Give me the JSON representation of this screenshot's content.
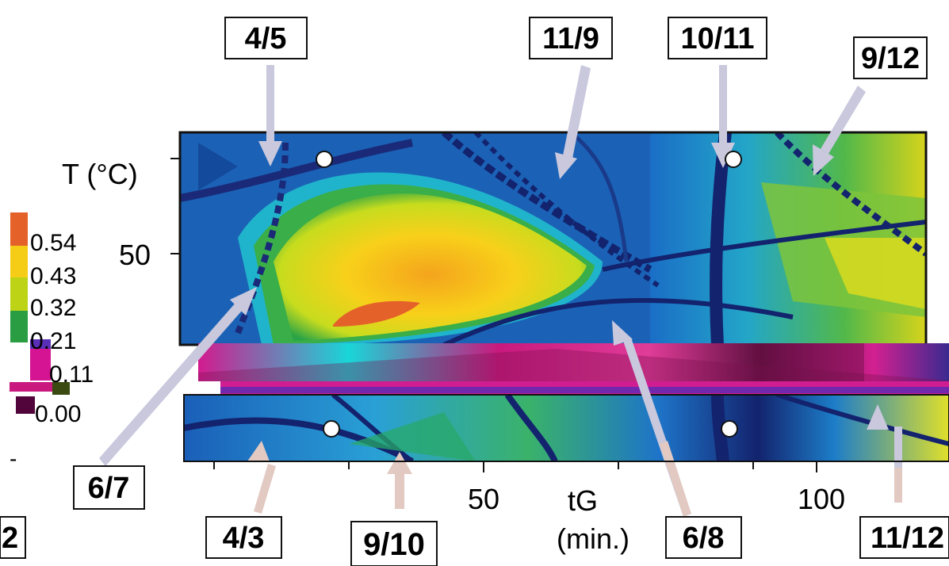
{
  "chart_data": {
    "type": "heatmap",
    "title": "",
    "xlabel": "tG",
    "xunit": "(min.)",
    "ylabel": "T (°C)",
    "x_ticks": [
      50,
      100
    ],
    "y_ticks": [
      50
    ],
    "colorbar": {
      "ticks": [
        "0.54",
        "0.43",
        "0.32",
        "0.21",
        "0.11",
        "0.00"
      ],
      "colors": [
        "#e4612a",
        "#f5cc16",
        "#bdd315",
        "#2a9d43",
        "#d51493",
        "#52053a"
      ]
    },
    "annotations": [
      {
        "label": "4/5"
      },
      {
        "label": "11/9"
      },
      {
        "label": "10/11"
      },
      {
        "label": "9/12"
      },
      {
        "label": "6/7"
      },
      {
        "label": "4/3"
      },
      {
        "label": "9/10"
      },
      {
        "label": "6/8"
      },
      {
        "label": "11/12"
      },
      {
        "label": "2"
      }
    ]
  },
  "colors": {
    "arrow_upper": "#c9c8dd",
    "arrow_lower": "#e2c9c2",
    "deep_blue": "#1a2a78",
    "blue": "#1e62c0",
    "cyan": "#18b7e8"
  }
}
